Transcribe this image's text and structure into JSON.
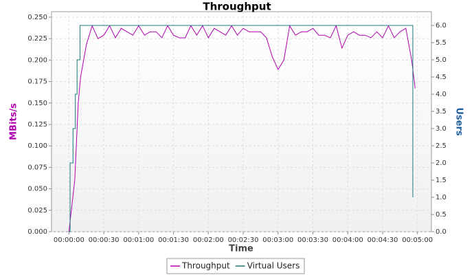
{
  "chart_data": {
    "type": "line",
    "title": "Throughput",
    "xlabel": "Time",
    "ylabel": "MBits/s",
    "y2label": "Users",
    "xlim": [
      -15,
      312
    ],
    "ylim": [
      0,
      0.2564
    ],
    "y2lim": [
      0,
      6.4
    ],
    "xticks": [
      {
        "value": 0,
        "label": "00:00:00"
      },
      {
        "value": 30,
        "label": "00:00:30"
      },
      {
        "value": 60,
        "label": "00:01:00"
      },
      {
        "value": 90,
        "label": "00:01:30"
      },
      {
        "value": 120,
        "label": "00:02:00"
      },
      {
        "value": 150,
        "label": "00:02:30"
      },
      {
        "value": 180,
        "label": "00:03:00"
      },
      {
        "value": 210,
        "label": "00:03:30"
      },
      {
        "value": 240,
        "label": "00:04:00"
      },
      {
        "value": 270,
        "label": "00:04:30"
      },
      {
        "value": 300,
        "label": "00:05:00"
      }
    ],
    "yticks": [
      {
        "value": 0,
        "label": "0.000"
      },
      {
        "value": 0.025,
        "label": "0.025"
      },
      {
        "value": 0.05,
        "label": "0.050"
      },
      {
        "value": 0.075,
        "label": "0.075"
      },
      {
        "value": 0.1,
        "label": "0.100"
      },
      {
        "value": 0.125,
        "label": "0.125"
      },
      {
        "value": 0.15,
        "label": "0.150"
      },
      {
        "value": 0.175,
        "label": "0.175"
      },
      {
        "value": 0.2,
        "label": "0.200"
      },
      {
        "value": 0.225,
        "label": "0.225"
      },
      {
        "value": 0.25,
        "label": "0.250"
      }
    ],
    "y2ticks": [
      {
        "value": 0,
        "label": "0.0"
      },
      {
        "value": 0.5,
        "label": "0.5"
      },
      {
        "value": 1,
        "label": "1.0"
      },
      {
        "value": 1.5,
        "label": "1.5"
      },
      {
        "value": 2,
        "label": "2.0"
      },
      {
        "value": 2.5,
        "label": "2.5"
      },
      {
        "value": 3,
        "label": "3.0"
      },
      {
        "value": 3.5,
        "label": "3.5"
      },
      {
        "value": 4,
        "label": "4.0"
      },
      {
        "value": 4.5,
        "label": "4.5"
      },
      {
        "value": 5,
        "label": "5.0"
      },
      {
        "value": 5.5,
        "label": "5.5"
      },
      {
        "value": 6,
        "label": "6.0"
      }
    ],
    "grid": true,
    "legend": "bottom",
    "series": [
      {
        "name": "Throughput",
        "color": "#b000b0",
        "axis": "y",
        "x": [
          0,
          5,
          8,
          10,
          15,
          20,
          25,
          30,
          35,
          40,
          45,
          50,
          55,
          60,
          65,
          70,
          75,
          80,
          85,
          90,
          95,
          100,
          105,
          110,
          115,
          120,
          125,
          130,
          135,
          140,
          145,
          150,
          155,
          160,
          165,
          170,
          175,
          180,
          185,
          190,
          195,
          200,
          205,
          210,
          215,
          220,
          225,
          230,
          235,
          240,
          245,
          250,
          255,
          260,
          265,
          270,
          275,
          280,
          285,
          290,
          295,
          298
        ],
        "values": [
          0,
          0.06,
          0.15,
          0.18,
          0.218,
          0.24,
          0.225,
          0.229,
          0.24,
          0.226,
          0.237,
          0.233,
          0.229,
          0.24,
          0.229,
          0.233,
          0.233,
          0.226,
          0.24,
          0.229,
          0.226,
          0.226,
          0.24,
          0.229,
          0.24,
          0.226,
          0.237,
          0.233,
          0.229,
          0.24,
          0.229,
          0.237,
          0.233,
          0.233,
          0.233,
          0.226,
          0.204,
          0.189,
          0.2,
          0.24,
          0.229,
          0.233,
          0.233,
          0.237,
          0.229,
          0.229,
          0.226,
          0.24,
          0.214,
          0.229,
          0.233,
          0.229,
          0.229,
          0.226,
          0.233,
          0.226,
          0.24,
          0.226,
          0.233,
          0.237,
          0.2,
          0.167
        ]
      },
      {
        "name": "Virtual Users",
        "color": "#1a7a7a",
        "axis": "y2",
        "step": true,
        "x": [
          0,
          1,
          3.5,
          5.5,
          7,
          9.5,
          296
        ],
        "values": [
          0,
          2,
          3,
          4,
          5,
          6,
          1
        ]
      }
    ]
  }
}
